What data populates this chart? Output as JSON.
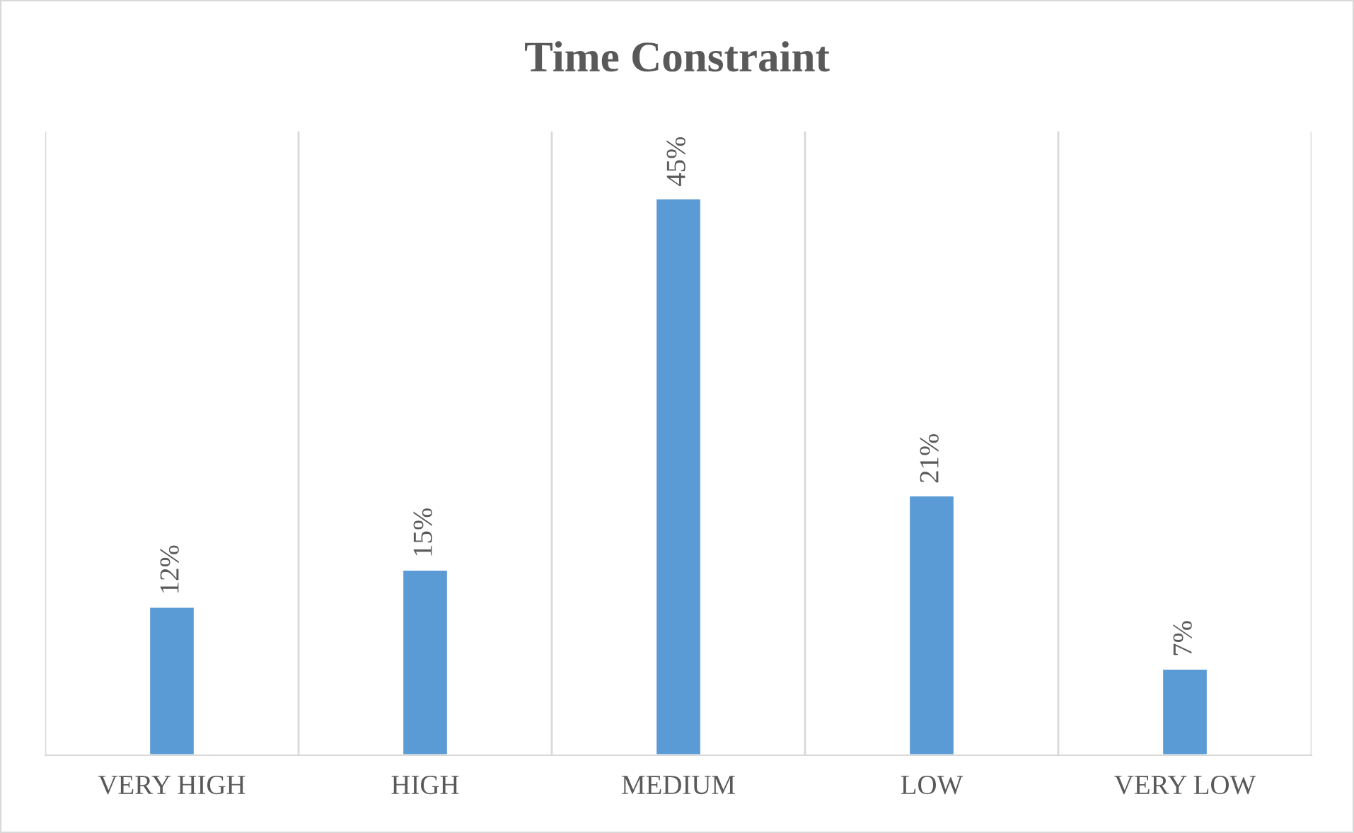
{
  "chart_data": {
    "type": "bar",
    "title": "Time Constraint",
    "categories": [
      "VERY HIGH",
      "HIGH",
      "MEDIUM",
      "LOW",
      "VERY LOW"
    ],
    "values": [
      12,
      15,
      45,
      21,
      7
    ],
    "value_labels": [
      "12%",
      "15%",
      "45%",
      "21%",
      "7%"
    ],
    "color": "#5b9bd5",
    "grid": "x",
    "legend": false
  }
}
